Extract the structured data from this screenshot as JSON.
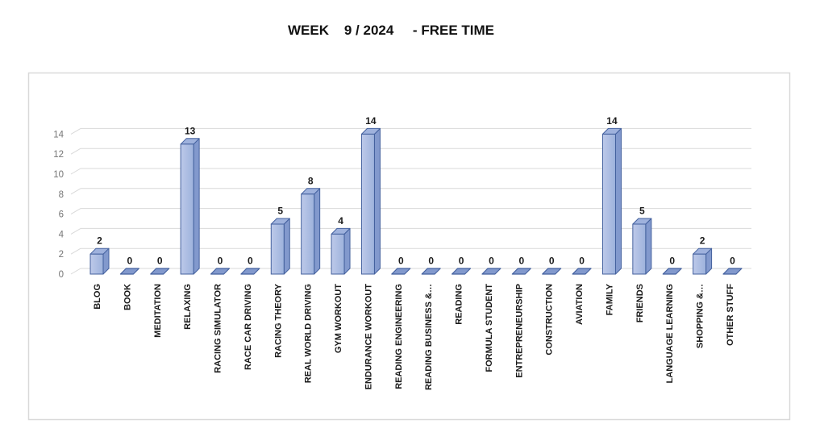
{
  "title": "WEEK    9 / 2024     - FREE TIME",
  "chart_data": {
    "type": "bar",
    "style": "3d-clustered-column",
    "title": "WEEK    9 / 2024     - FREE TIME",
    "categories": [
      "BLOG",
      "BOOK",
      "MEDITATION",
      "RELAXING",
      "RACING SIMULATOR",
      "RACE CAR DRIVING",
      "RACING THEORY",
      "REAL WORLD DRIVING",
      "GYM WORKOUT",
      "ENDURANCE WORKOUT",
      "READING ENGINEERING",
      "READING BUSINESS &…",
      "READING",
      "FORMULA STUDENT",
      "ENTREPRENEURSHIP",
      "CONSTRUCTION",
      "AVIATION",
      "FAMILY",
      "FRIENDS",
      "LANGUAGE LEARNING",
      "SHOPPING &…",
      "OTHER STUFF"
    ],
    "values": [
      2,
      0,
      0,
      13,
      0,
      0,
      5,
      8,
      4,
      14,
      0,
      0,
      0,
      0,
      0,
      0,
      0,
      14,
      5,
      0,
      2,
      0
    ],
    "xlabel": "",
    "ylabel": "",
    "ylim": [
      0,
      14
    ],
    "yticks": [
      0,
      2,
      4,
      6,
      8,
      10,
      12,
      14
    ],
    "grid": true,
    "data_labels": true,
    "legend": "none",
    "colors": {
      "bar_face_light": "#bdc9e9",
      "bar_face_dark": "#9db2dc",
      "bar_side": "#8299cd",
      "bar_top": "#9fb2dd",
      "bar_border": "#44619e",
      "gridline": "#d9d9d9",
      "frame_border": "#d9d9d9",
      "axis_label": "#757575",
      "text": "#1a1a1a",
      "background": "#ffffff"
    }
  }
}
